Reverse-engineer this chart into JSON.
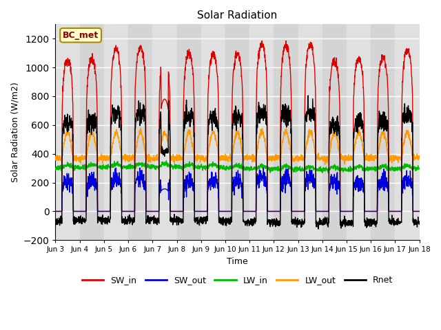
{
  "title": "Solar Radiation",
  "xlabel": "Time",
  "ylabel": "Solar Radiation (W/m2)",
  "ylim": [
    -200,
    1300
  ],
  "yticks": [
    -200,
    0,
    200,
    400,
    600,
    800,
    1000,
    1200
  ],
  "site_label": "BC_met",
  "series_colors": {
    "SW_in": "#dd0000",
    "SW_out": "#0000dd",
    "LW_in": "#00bb00",
    "LW_out": "#ff9900",
    "Rnet": "#000000"
  },
  "n_days": 15,
  "start_day": 3,
  "end_day": 18,
  "pts_per_day": 144
}
